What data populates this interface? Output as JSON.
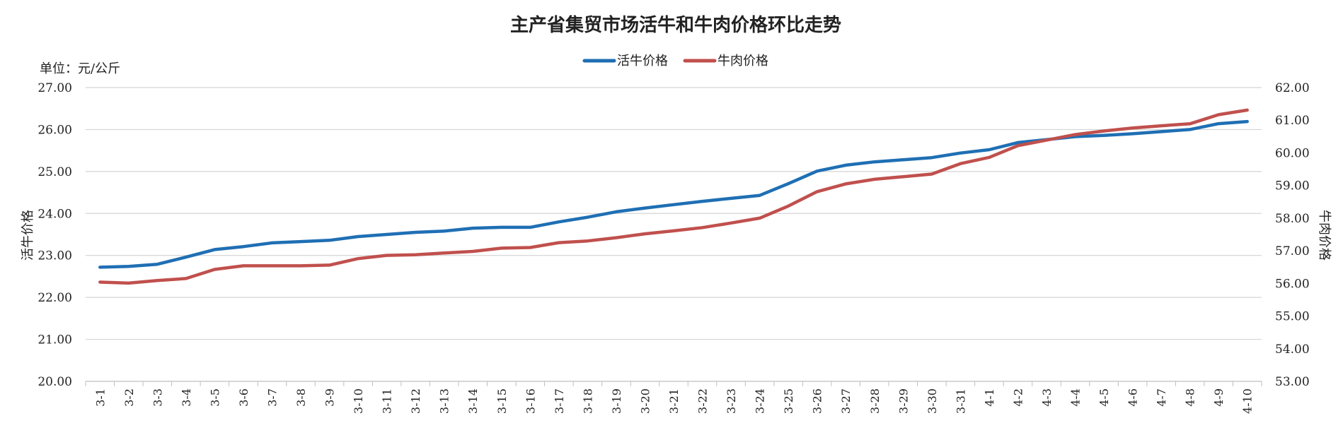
{
  "chart_data": {
    "type": "line",
    "title": "主产省集贸市场活牛和牛肉价格环比走势",
    "unit_label": "单位：元/公斤",
    "ylabel_left": "活牛价格",
    "ylabel_right": "牛肉价格",
    "legend_position": "top-center",
    "grid": true,
    "ylim_left": [
      20,
      27
    ],
    "ylim_right": [
      53,
      62
    ],
    "yticks_left": [
      "20.00",
      "21.00",
      "22.00",
      "23.00",
      "24.00",
      "25.00",
      "26.00",
      "27.00"
    ],
    "yticks_right": [
      "53.00",
      "54.00",
      "55.00",
      "56.00",
      "57.00",
      "58.00",
      "59.00",
      "60.00",
      "61.00",
      "62.00"
    ],
    "categories": [
      "3-1",
      "3-2",
      "3-3",
      "3-4",
      "3-5",
      "3-6",
      "3-7",
      "3-8",
      "3-9",
      "3-10",
      "3-11",
      "3-12",
      "3-13",
      "3-14",
      "3-15",
      "3-16",
      "3-17",
      "3-18",
      "3-19",
      "3-20",
      "3-21",
      "3-22",
      "3-23",
      "3-24",
      "3-25",
      "3-26",
      "3-27",
      "3-28",
      "3-29",
      "3-30",
      "3-31",
      "4-1",
      "4-2",
      "4-3",
      "4-4",
      "4-5",
      "4-6",
      "4-7",
      "4-8",
      "4-9",
      "4-10"
    ],
    "series": [
      {
        "name": "活牛价格",
        "axis": "left",
        "color": "#1f6fb4",
        "values": [
          22.72,
          22.74,
          22.79,
          22.96,
          23.14,
          23.21,
          23.3,
          23.33,
          23.36,
          23.45,
          23.5,
          23.55,
          23.58,
          23.65,
          23.67,
          23.67,
          23.8,
          23.91,
          24.04,
          24.13,
          24.21,
          24.29,
          24.36,
          24.43,
          24.71,
          25.01,
          25.15,
          25.23,
          25.28,
          25.33,
          25.44,
          25.52,
          25.69,
          25.76,
          25.83,
          25.86,
          25.9,
          25.95,
          26.0,
          26.14,
          26.19
        ]
      },
      {
        "name": "牛肉价格",
        "axis": "right",
        "color": "#c0504d",
        "values": [
          56.04,
          56.01,
          56.09,
          56.15,
          56.43,
          56.54,
          56.54,
          56.54,
          56.56,
          56.76,
          56.86,
          56.88,
          56.93,
          56.98,
          57.08,
          57.1,
          57.25,
          57.3,
          57.4,
          57.52,
          57.61,
          57.71,
          57.85,
          58.0,
          58.37,
          58.81,
          59.05,
          59.19,
          59.27,
          59.35,
          59.67,
          59.86,
          60.22,
          60.39,
          60.56,
          60.67,
          60.76,
          60.83,
          60.89,
          61.17,
          61.31
        ]
      }
    ]
  }
}
